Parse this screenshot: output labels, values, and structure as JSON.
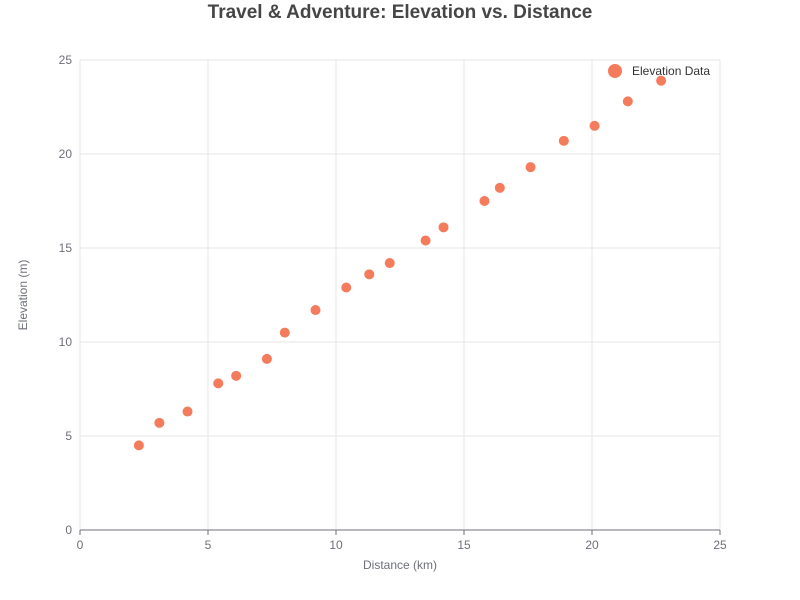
{
  "chart_data": {
    "type": "scatter",
    "title": "Travel & Adventure: Elevation vs. Distance",
    "xlabel": "Distance (km)",
    "ylabel": "Elevation (m)",
    "xlim": [
      0,
      25
    ],
    "ylim": [
      0,
      25
    ],
    "xticks": [
      "0",
      "5",
      "10",
      "15",
      "20",
      "25"
    ],
    "yticks": [
      "0",
      "5",
      "10",
      "15",
      "20",
      "25"
    ],
    "grid": true,
    "legend": "top-right",
    "series": [
      {
        "name": "Elevation Data",
        "color": "#f47b5c",
        "x": [
          2.3,
          3.1,
          4.2,
          5.4,
          6.1,
          7.3,
          8.0,
          9.2,
          10.4,
          11.3,
          12.1,
          13.5,
          14.2,
          15.8,
          16.4,
          17.6,
          18.9,
          20.1,
          21.4,
          22.7
        ],
        "y": [
          4.5,
          5.7,
          6.3,
          7.8,
          8.2,
          9.1,
          10.5,
          11.7,
          12.9,
          13.6,
          14.2,
          15.4,
          16.1,
          17.5,
          18.2,
          19.3,
          20.7,
          21.5,
          22.8,
          23.9
        ]
      }
    ]
  }
}
